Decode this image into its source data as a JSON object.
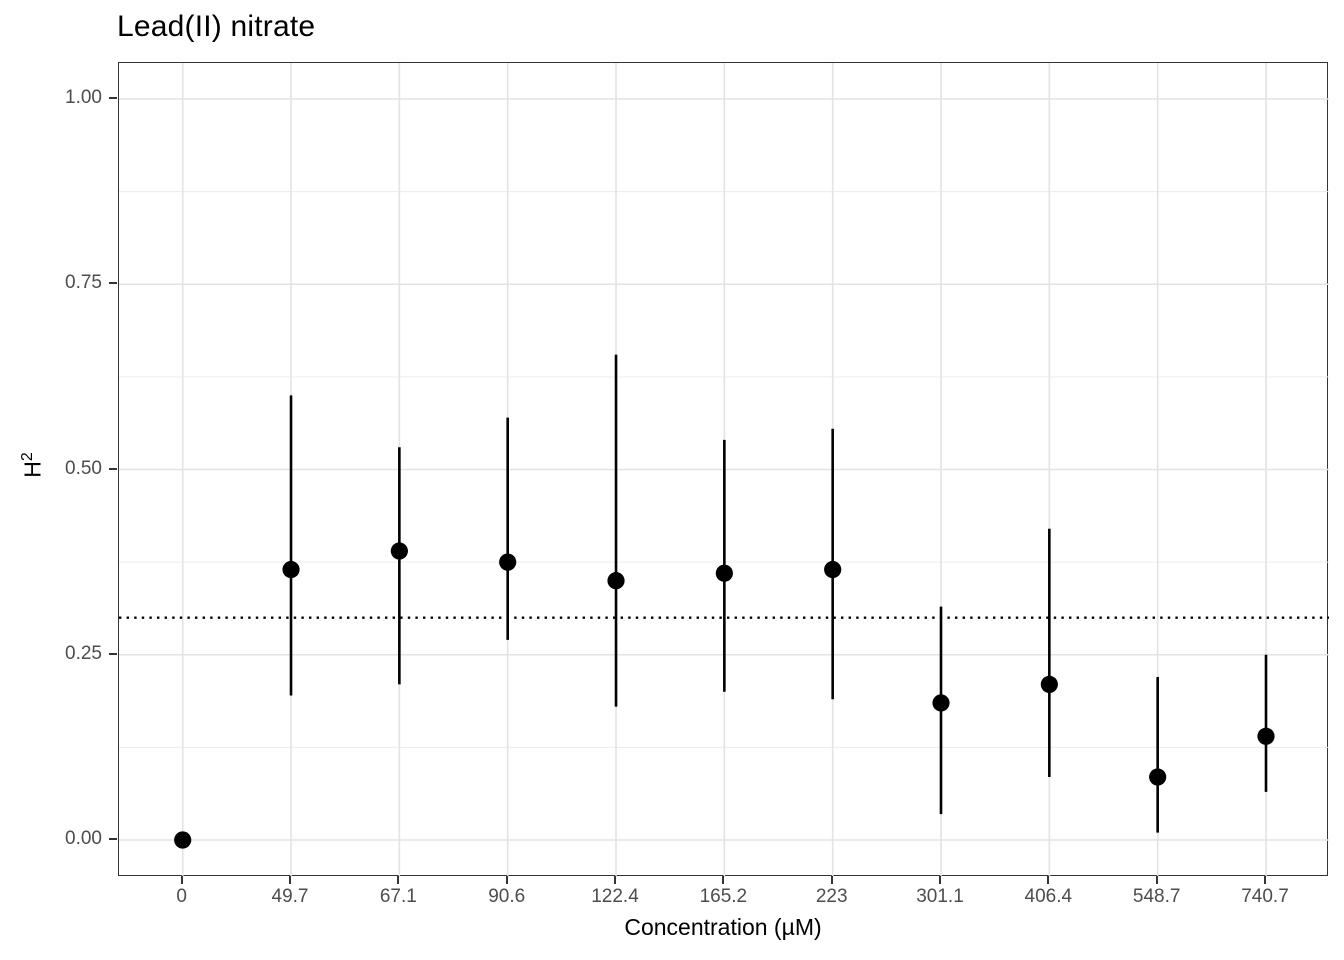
{
  "title": "Lead(II) nitrate",
  "chart_data": {
    "type": "pointrange",
    "title": "Lead(II) nitrate",
    "xlabel": "Concentration (µM)",
    "ylabel": "H²",
    "ylabel_parts": {
      "base": "H",
      "sup": "2"
    },
    "categories": [
      "0",
      "49.7",
      "67.1",
      "90.6",
      "122.4",
      "165.2",
      "223",
      "301.1",
      "406.4",
      "548.7",
      "740.7"
    ],
    "values": [
      0.0,
      0.365,
      0.39,
      0.375,
      0.35,
      0.36,
      0.365,
      0.185,
      0.21,
      0.085,
      0.14
    ],
    "lower": [
      0.0,
      0.195,
      0.21,
      0.27,
      0.18,
      0.2,
      0.19,
      0.035,
      0.085,
      0.01,
      0.065
    ],
    "upper": [
      0.0,
      0.6,
      0.53,
      0.57,
      0.655,
      0.54,
      0.555,
      0.315,
      0.42,
      0.22,
      0.25
    ],
    "hline": {
      "value": 0.3,
      "style": "dotted",
      "color": "#000000"
    },
    "yticks": [
      {
        "label": "0.00",
        "value": 0.0
      },
      {
        "label": "0.25",
        "value": 0.25
      },
      {
        "label": "0.50",
        "value": 0.5
      },
      {
        "label": "0.75",
        "value": 0.75
      },
      {
        "label": "1.00",
        "value": 1.0
      }
    ],
    "y_minor_ticks": [
      0.125,
      0.375,
      0.625,
      0.875
    ],
    "ylim": [
      -0.05,
      1.05
    ],
    "grid": "horizontal major+minor, vertical at categories",
    "legend": "none",
    "point_color": "#000000",
    "grid_color_major": "#e3e3e3",
    "grid_color_minor": "#ececec",
    "border_color": "#333333",
    "tick_label_color": "#4d4d4d"
  }
}
